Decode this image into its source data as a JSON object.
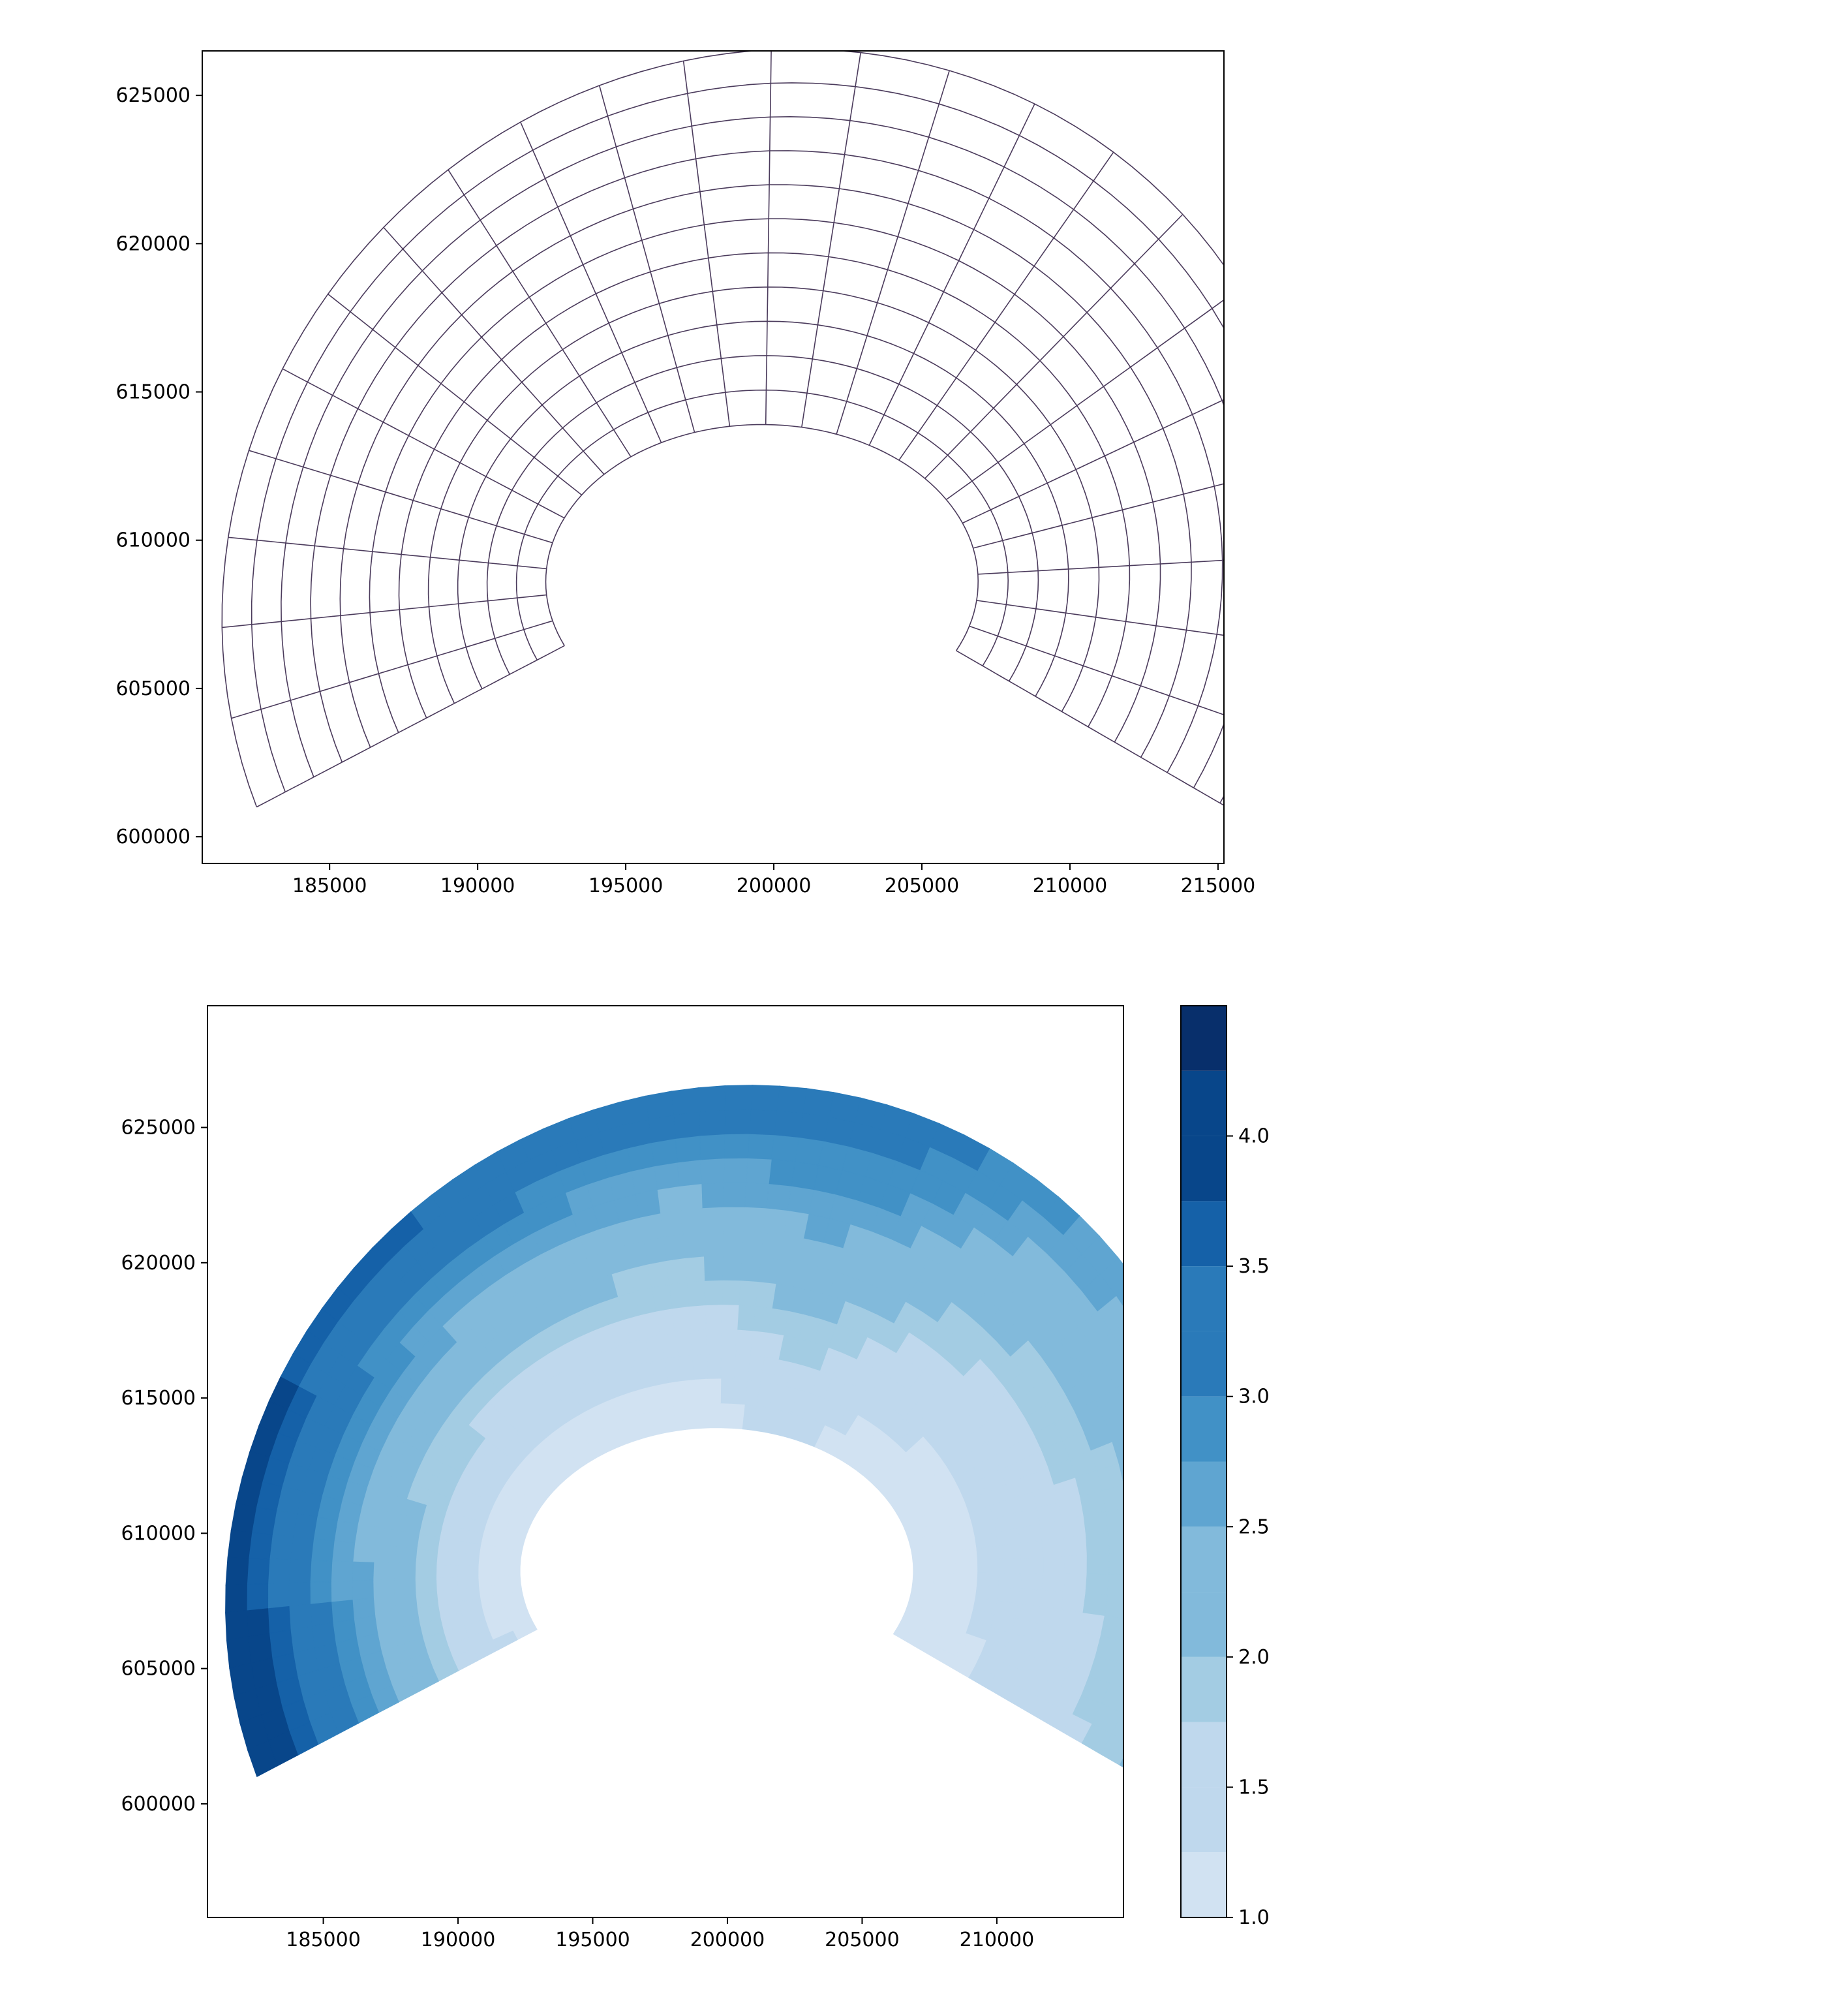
{
  "chart_data": [
    {
      "type": "mesh",
      "title": "",
      "xlabel": "",
      "ylabel": "",
      "xlim": [
        180700,
        215200
      ],
      "ylim": [
        599100,
        626500
      ],
      "x_ticks": [
        "185000",
        "190000",
        "195000",
        "200000",
        "205000",
        "210000",
        "215000"
      ],
      "x_tick_values": [
        185000,
        190000,
        195000,
        200000,
        205000,
        210000,
        215000
      ],
      "y_ticks": [
        "600000",
        "605000",
        "610000",
        "615000",
        "620000",
        "625000"
      ],
      "y_tick_values": [
        600000,
        605000,
        610000,
        615000,
        620000,
        625000
      ],
      "grid": false,
      "mesh": {
        "center": [
          199600,
          608600
        ],
        "inner_radius_x": 7300,
        "inner_radius_y": 5300,
        "outer_radius": 18200,
        "rings": 11,
        "sectors": 24,
        "cut_left_tip": [
          192800,
          609000
        ],
        "cut_right_tip": [
          202800,
          610500
        ]
      }
    },
    {
      "type": "heatmap",
      "title": "",
      "xlabel": "",
      "ylabel": "",
      "xlim": [
        180700,
        214700
      ],
      "ylim": [
        595800,
        629500
      ],
      "x_ticks": [
        "185000",
        "190000",
        "195000",
        "200000",
        "205000",
        "210000"
      ],
      "x_tick_values": [
        185000,
        190000,
        195000,
        200000,
        205000,
        210000
      ],
      "y_ticks": [
        "600000",
        "605000",
        "610000",
        "615000",
        "620000",
        "625000"
      ],
      "y_tick_values": [
        600000,
        605000,
        610000,
        615000,
        620000,
        625000
      ],
      "grid": false,
      "colorbar": {
        "ticks": [
          "1.0",
          "1.5",
          "2.0",
          "2.5",
          "3.0",
          "3.5",
          "4.0"
        ],
        "tick_values": [
          1.0,
          1.5,
          2.0,
          2.5,
          3.0,
          3.5,
          4.0
        ],
        "range": [
          1.0,
          4.5
        ],
        "levels": [
          1.0,
          1.25,
          1.5,
          1.75,
          2.0,
          2.25,
          2.5,
          2.75,
          3.0,
          3.25,
          3.5,
          3.75,
          4.0,
          4.25,
          4.5
        ]
      },
      "colors": [
        "#d1e2f2",
        "#bfd8ed",
        "#a3cce3",
        "#82badb",
        "#5fa5d1",
        "#4191c6",
        "#2a7ab9",
        "#1561a8",
        "#08468a",
        "#082f6b"
      ],
      "value_field": "radial level, highest along outer rim, lowest at lower right",
      "regions": [
        {
          "band": [
            4.25,
            4.5
          ]
        },
        {
          "band": [
            4.0,
            4.25
          ]
        },
        {
          "band": [
            3.75,
            4.0
          ]
        },
        {
          "band": [
            3.5,
            3.75
          ]
        },
        {
          "band": [
            3.25,
            3.5
          ]
        },
        {
          "band": [
            3.0,
            3.25
          ]
        },
        {
          "band": [
            2.75,
            3.0
          ]
        },
        {
          "band": [
            2.5,
            2.75
          ]
        },
        {
          "band": [
            2.25,
            2.5
          ]
        },
        {
          "band": [
            2.0,
            2.25
          ]
        },
        {
          "band": [
            1.75,
            2.0
          ]
        },
        {
          "band": [
            1.5,
            1.75
          ]
        },
        {
          "band": [
            1.25,
            1.5
          ]
        },
        {
          "band": [
            1.0,
            1.25
          ]
        }
      ]
    }
  ]
}
